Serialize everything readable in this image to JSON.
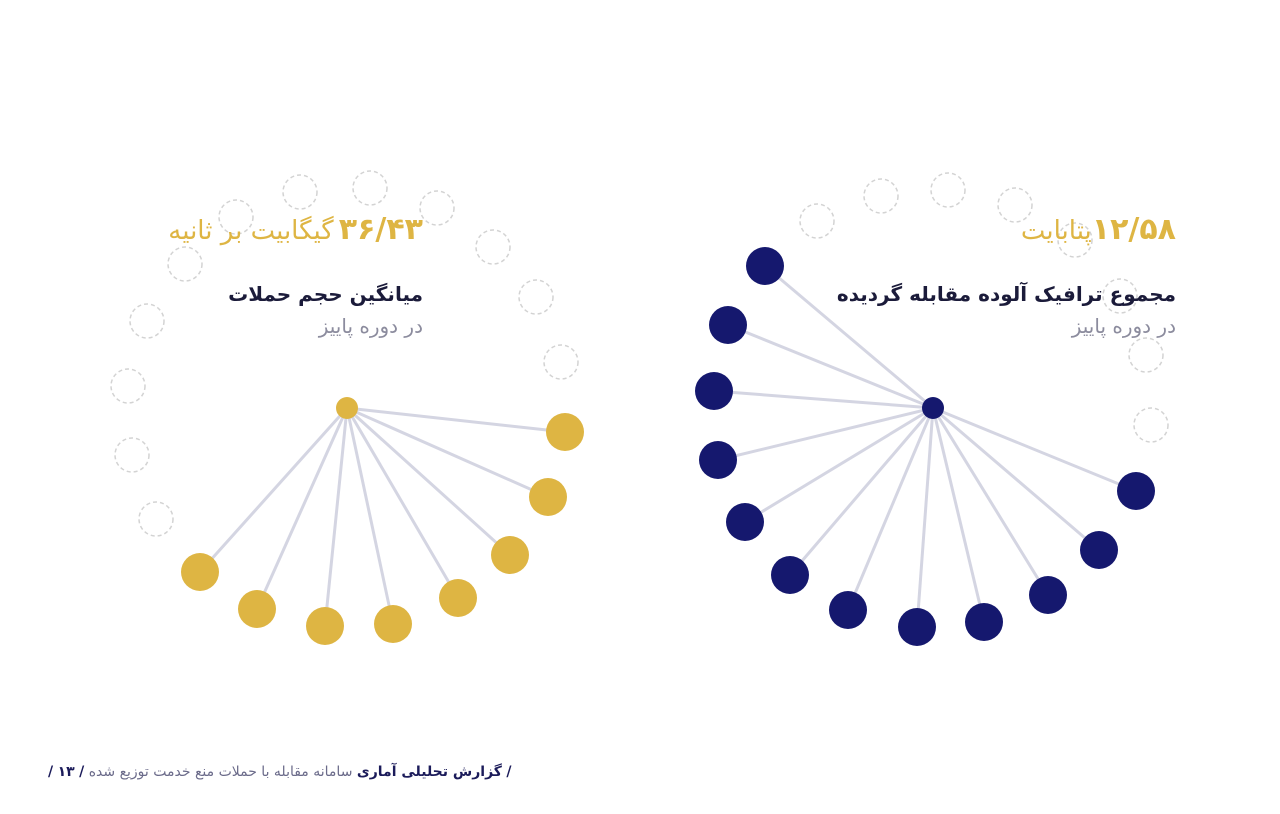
{
  "colors": {
    "gold": "#DEB543",
    "navy": "#15186E",
    "line": "#D4D5E2",
    "dashed": "#D3D3D3",
    "gray_text": "#8C8C9E",
    "dark_text": "#1B1B3A"
  },
  "left_stat": {
    "number": "۳۶/۴۳",
    "unit": "گیگابیت بر ثانیه",
    "label": "میانگین حجم حملات",
    "subtitle": "در دوره پاییز"
  },
  "right_stat": {
    "number": "۱۲/۵۸",
    "unit": "پتابایت",
    "label": "مجموع ترافیک آلوده مقابله گردیده",
    "subtitle": "در دوره پاییز"
  },
  "footer": {
    "title": "گزارش تحلیلی آماری",
    "description": "سامانه مقابله با حملات منع خدمت توزیع شده",
    "page": "۱۳"
  }
}
